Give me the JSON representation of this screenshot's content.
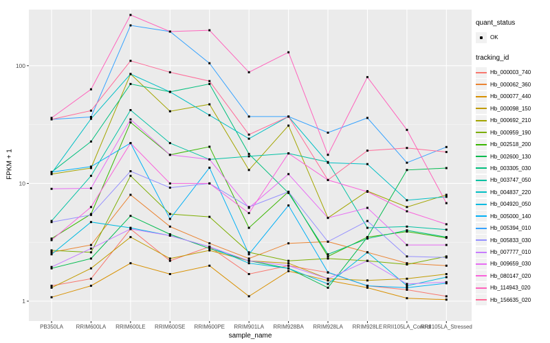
{
  "figure": {
    "background": "#ffffff",
    "panel_background": "#ebebeb",
    "grid_color": "#ffffff",
    "tick_text_color": "#4d4d4d",
    "point_color": "#000000"
  },
  "y_axis": {
    "title": "FPKM + 1",
    "tick_labels": [
      "100",
      "10",
      "1"
    ],
    "tick_values": [
      100,
      10,
      1
    ],
    "minor_values": [
      31.62,
      3.162
    ],
    "scale": "log10"
  },
  "x_axis": {
    "title": "sample_name"
  },
  "legend": {
    "quant_status_title": "quant_status",
    "ok_label": "OK",
    "tracking_id_title": "tracking_id"
  },
  "chart_data": {
    "type": "line",
    "title": "",
    "xlabel": "sample_name",
    "ylabel": "FPKM + 1",
    "y_scale": "log10",
    "ylim": [
      1,
      300
    ],
    "grid": true,
    "legend_position": "right",
    "marker": "black-square",
    "quant_status": "OK",
    "categories": [
      "PB350LA",
      "RRIM600LA",
      "RRIM600LE",
      "RRIM600SE",
      "RRIM600PE",
      "RRIM901LA",
      "RRIM928BA",
      "RRIM928LA",
      "RRIM928LE",
      "RRII105LA_Control",
      "RRII105LA_Stressed"
    ],
    "series": [
      {
        "name": "Hb_000003_740",
        "color": "#F8766D",
        "values": [
          1.35,
          1.55,
          4.1,
          2.2,
          2.9,
          1.7,
          2.0,
          1.75,
          1.35,
          1.25,
          1.1
        ]
      },
      {
        "name": "Hb_000062_360",
        "color": "#EA8331",
        "values": [
          2.6,
          3.0,
          8.0,
          4.3,
          3.1,
          2.3,
          3.1,
          3.2,
          2.6,
          2.1,
          2.0
        ]
      },
      {
        "name": "Hb_000077_440",
        "color": "#D89000",
        "values": [
          1.08,
          1.35,
          2.1,
          1.7,
          2.0,
          1.1,
          1.8,
          1.5,
          1.3,
          1.06,
          1.03
        ]
      },
      {
        "name": "Hb_000098_150",
        "color": "#C09B00",
        "values": [
          1.3,
          1.9,
          3.5,
          2.3,
          2.7,
          2.2,
          2.1,
          1.55,
          1.5,
          1.55,
          1.7
        ]
      },
      {
        "name": "Hb_000692_210",
        "color": "#A3A500",
        "values": [
          12,
          13.5,
          85,
          41,
          47,
          13,
          31,
          5.1,
          8.6,
          6.3,
          8.0
        ]
      },
      {
        "name": "Hb_000959_190",
        "color": "#7CAE00",
        "values": [
          2.7,
          2.6,
          11.6,
          5.5,
          5.2,
          2.6,
          2.2,
          2.3,
          2.2,
          2.05,
          2.4
        ]
      },
      {
        "name": "Hb_002518_200",
        "color": "#39B600",
        "values": [
          3.4,
          5.5,
          33,
          17.5,
          20.5,
          4.2,
          8.5,
          2.4,
          3.5,
          3.9,
          3.45
        ]
      },
      {
        "name": "Hb_002600_130",
        "color": "#00BB4E",
        "values": [
          1.9,
          2.3,
          5.3,
          3.7,
          2.8,
          2.2,
          1.9,
          1.3,
          3.5,
          13,
          13.5
        ]
      },
      {
        "name": "Hb_003305_030",
        "color": "#00BF7D",
        "values": [
          12.5,
          22.7,
          70,
          60,
          70,
          17.8,
          8.3,
          2.5,
          3.4,
          4.0,
          3.5
        ]
      },
      {
        "name": "Hb_003747_050",
        "color": "#00C1A3",
        "values": [
          4.8,
          11.6,
          42,
          22,
          16,
          17,
          18,
          15.2,
          4.2,
          4.3,
          4.05
        ]
      },
      {
        "name": "Hb_004837_220",
        "color": "#00BFC4",
        "values": [
          12.2,
          35.4,
          85,
          60,
          38,
          24,
          37,
          15,
          14.6,
          7.2,
          7.7
        ]
      },
      {
        "name": "Hb_004920_050",
        "color": "#00BAE0",
        "values": [
          2.5,
          4.7,
          4.2,
          3.6,
          2.9,
          2.1,
          1.9,
          1.4,
          2.6,
          1.35,
          1.6
        ]
      },
      {
        "name": "Hb_005000_140",
        "color": "#00B0F6",
        "values": [
          12.5,
          13.9,
          22,
          5.0,
          13.6,
          2.5,
          6.5,
          1.76,
          1.35,
          1.3,
          1.42
        ]
      },
      {
        "name": "Hb_005394_010",
        "color": "#35A2FF",
        "values": [
          35,
          36.7,
          220,
          195,
          105,
          37,
          37,
          27,
          36,
          15,
          20.4
        ]
      },
      {
        "name": "Hb_005833_030",
        "color": "#9590FF",
        "values": [
          4.7,
          5.4,
          12.7,
          9.2,
          10,
          6.3,
          8.5,
          3.2,
          4.8,
          2.4,
          2.35
        ]
      },
      {
        "name": "Hb_007777_010",
        "color": "#C77CFF",
        "values": [
          1.95,
          2.8,
          4.1,
          3.6,
          2.9,
          2.2,
          2.0,
          1.55,
          2.2,
          1.4,
          1.45
        ]
      },
      {
        "name": "Hb_009659_030",
        "color": "#E76BF3",
        "values": [
          9,
          9.1,
          35,
          17.5,
          16,
          6.2,
          12,
          5.1,
          6.2,
          3.0,
          3.0
        ]
      },
      {
        "name": "Hb_080147_020",
        "color": "#FA62DB",
        "values": [
          3.3,
          6.3,
          22,
          10,
          10,
          5.6,
          18,
          10.7,
          8.5,
          5.8,
          4.5
        ]
      },
      {
        "name": "Hb_114943_020",
        "color": "#FF62BC",
        "values": [
          36,
          63,
          270,
          195,
          200,
          88,
          130,
          17.5,
          80,
          28.5,
          6.8
        ]
      },
      {
        "name": "Hb_156635_020",
        "color": "#FF6A98",
        "values": [
          35,
          41.5,
          110,
          88,
          74,
          26,
          37,
          10.7,
          19,
          20,
          18.5
        ]
      }
    ]
  }
}
